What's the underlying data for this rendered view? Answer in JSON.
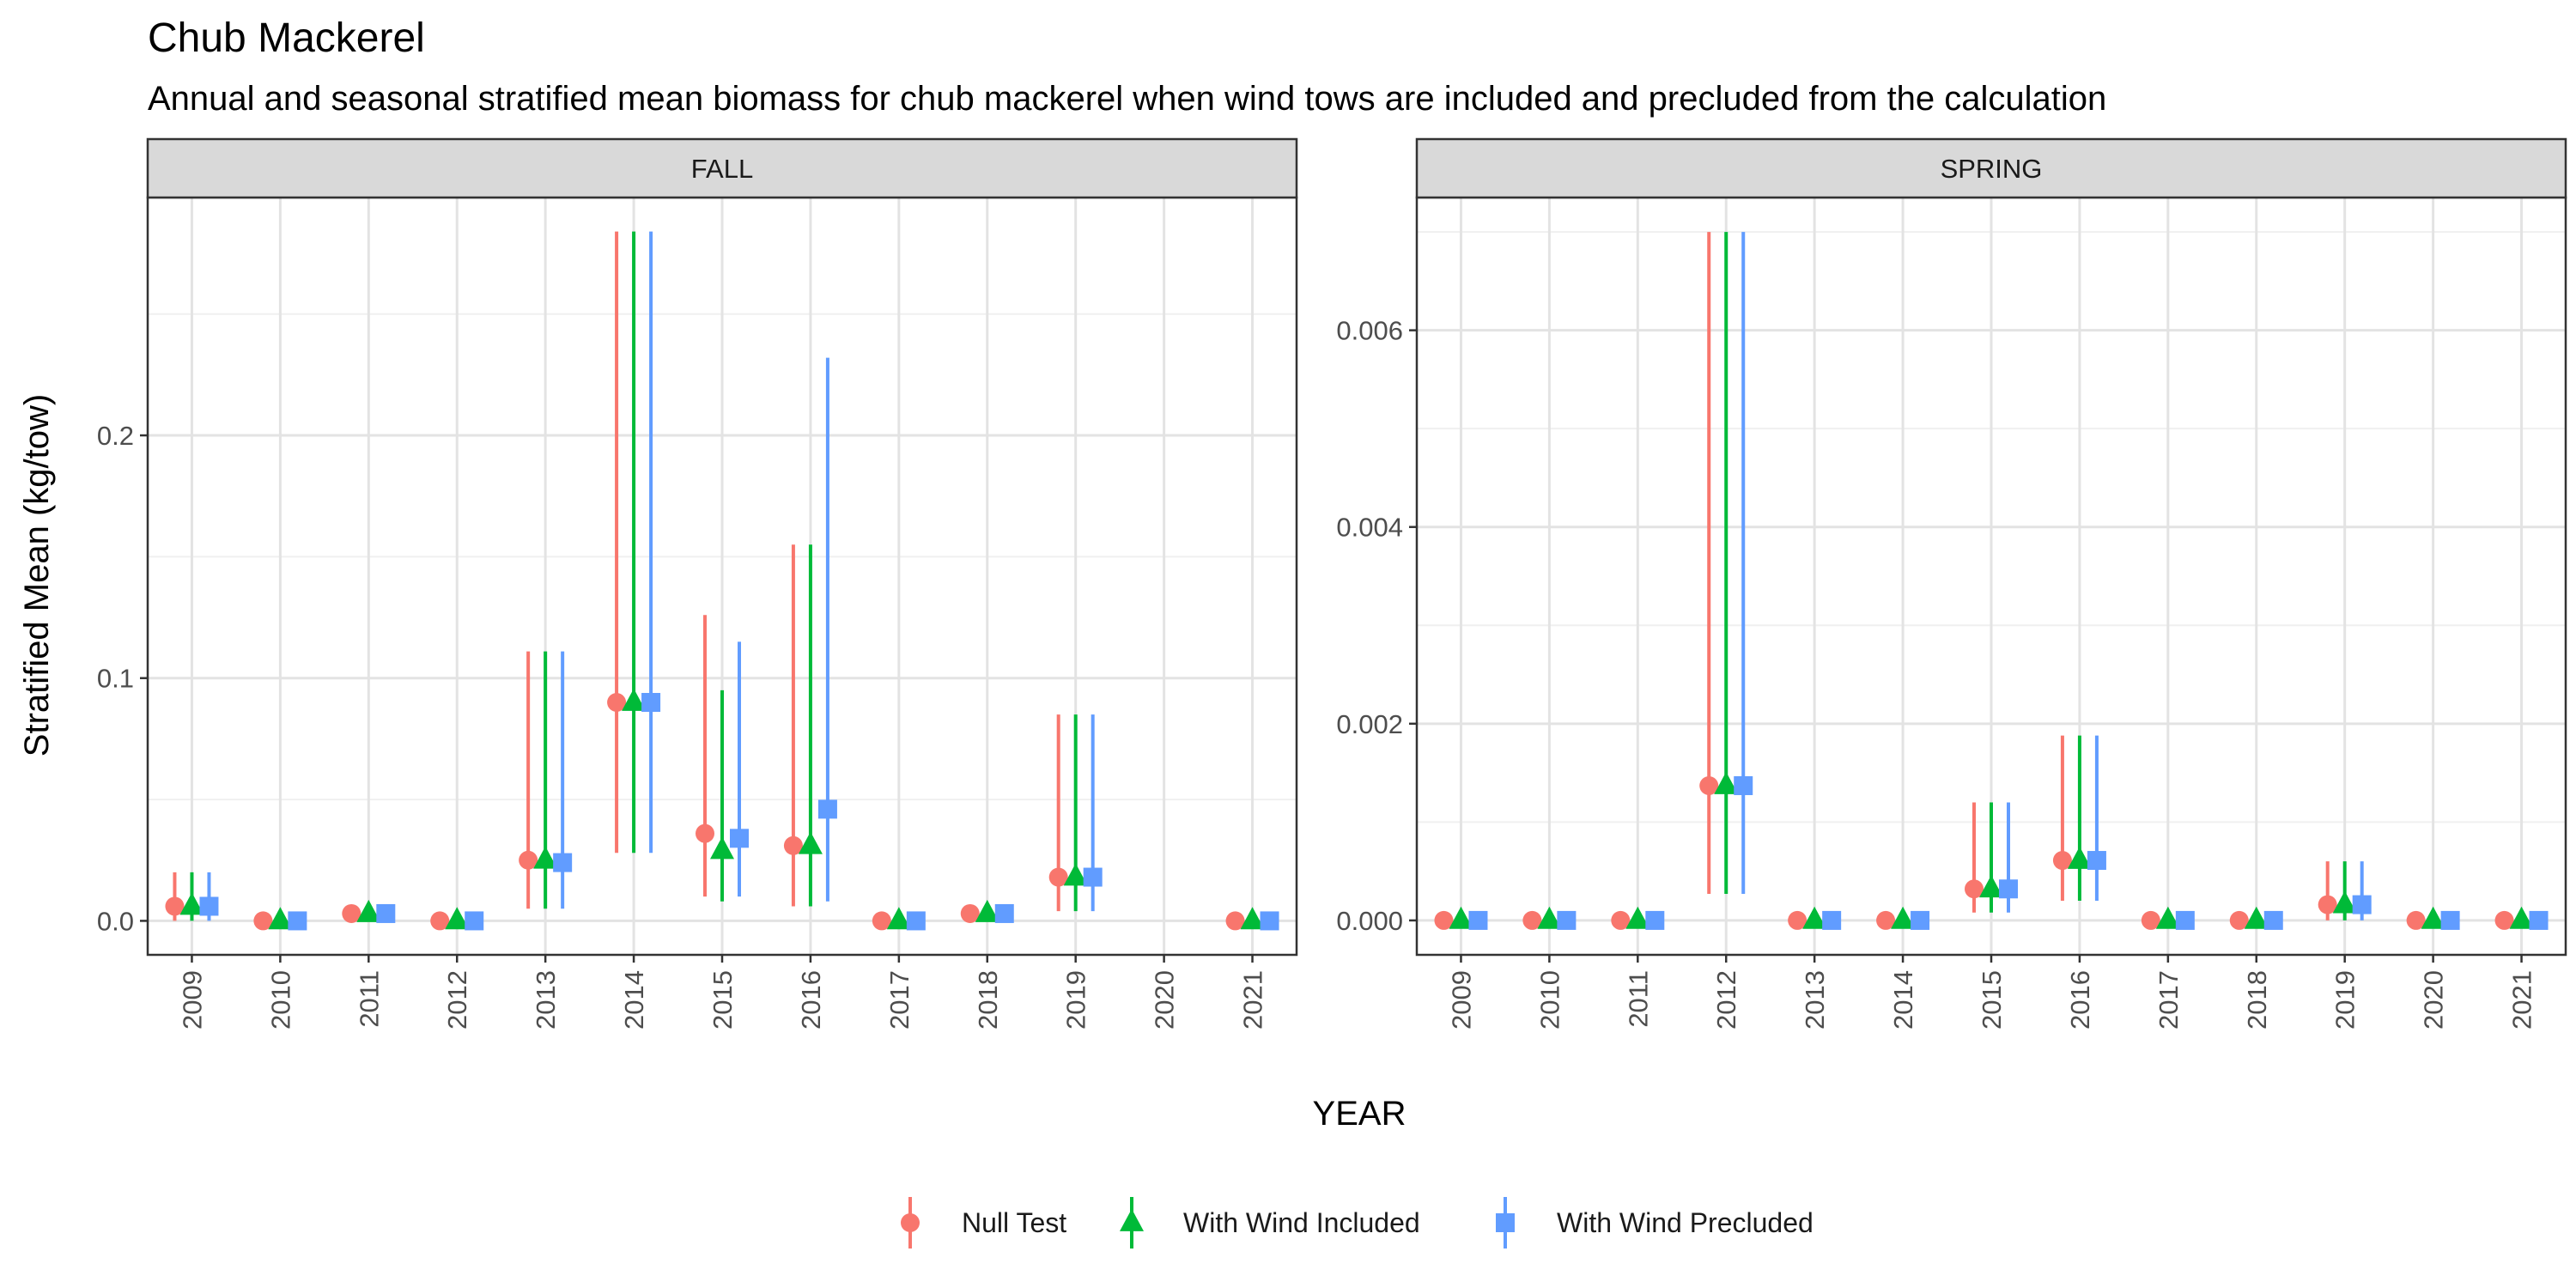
{
  "chart_data": {
    "type": "scatter",
    "title": "Chub Mackerel",
    "subtitle": "Annual and seasonal stratified mean biomass for chub mackerel when wind tows are included and precluded from the calculation",
    "xlabel": "YEAR",
    "ylabel": "Stratified Mean (kg/tow)",
    "grid": true,
    "legend_position": "bottom",
    "categories": [
      "2009",
      "2010",
      "2011",
      "2012",
      "2013",
      "2014",
      "2015",
      "2016",
      "2017",
      "2018",
      "2019",
      "2020",
      "2021"
    ],
    "series_styles": [
      {
        "name": "Null Test",
        "color": "#F8766D",
        "shape": "circle"
      },
      {
        "name": "With Wind Included",
        "color": "#00BA38",
        "shape": "triangle"
      },
      {
        "name": "With Wind Precluded",
        "color": "#619CFF",
        "shape": "square"
      }
    ],
    "panels": [
      {
        "strip": "FALL",
        "ylim": [
          -0.014,
          0.298
        ],
        "yticks": [
          0.0,
          0.1,
          0.2
        ],
        "ytick_labels": [
          "0.0",
          "0.1",
          "0.2"
        ],
        "series": [
          {
            "name": "Null Test",
            "points": [
              {
                "x": "2009",
                "y": 0.006,
                "lo": 0.0,
                "hi": 0.02
              },
              {
                "x": "2010",
                "y": 0.0,
                "lo": 0.0,
                "hi": 0.0
              },
              {
                "x": "2011",
                "y": 0.003,
                "lo": 0.003,
                "hi": 0.003
              },
              {
                "x": "2012",
                "y": 0.0,
                "lo": 0.0,
                "hi": 0.0
              },
              {
                "x": "2013",
                "y": 0.025,
                "lo": 0.005,
                "hi": 0.111
              },
              {
                "x": "2014",
                "y": 0.09,
                "lo": 0.028,
                "hi": 0.284
              },
              {
                "x": "2015",
                "y": 0.036,
                "lo": 0.01,
                "hi": 0.126
              },
              {
                "x": "2016",
                "y": 0.031,
                "lo": 0.006,
                "hi": 0.155
              },
              {
                "x": "2017",
                "y": 0.0,
                "lo": 0.0,
                "hi": 0.0
              },
              {
                "x": "2018",
                "y": 0.003,
                "lo": 0.003,
                "hi": 0.003
              },
              {
                "x": "2019",
                "y": 0.018,
                "lo": 0.004,
                "hi": 0.085
              },
              {
                "x": "2021",
                "y": 0.0,
                "lo": 0.0,
                "hi": 0.0
              }
            ]
          },
          {
            "name": "With Wind Included",
            "points": [
              {
                "x": "2009",
                "y": 0.006,
                "lo": 0.0,
                "hi": 0.02
              },
              {
                "x": "2010",
                "y": 0.0,
                "lo": 0.0,
                "hi": 0.0
              },
              {
                "x": "2011",
                "y": 0.003,
                "lo": 0.003,
                "hi": 0.003
              },
              {
                "x": "2012",
                "y": 0.0,
                "lo": 0.0,
                "hi": 0.0
              },
              {
                "x": "2013",
                "y": 0.025,
                "lo": 0.005,
                "hi": 0.111
              },
              {
                "x": "2014",
                "y": 0.09,
                "lo": 0.028,
                "hi": 0.284
              },
              {
                "x": "2015",
                "y": 0.029,
                "lo": 0.008,
                "hi": 0.095
              },
              {
                "x": "2016",
                "y": 0.031,
                "lo": 0.006,
                "hi": 0.155
              },
              {
                "x": "2017",
                "y": 0.0,
                "lo": 0.0,
                "hi": 0.0
              },
              {
                "x": "2018",
                "y": 0.003,
                "lo": 0.003,
                "hi": 0.003
              },
              {
                "x": "2019",
                "y": 0.018,
                "lo": 0.004,
                "hi": 0.085
              },
              {
                "x": "2021",
                "y": 0.0,
                "lo": 0.0,
                "hi": 0.0
              }
            ]
          },
          {
            "name": "With Wind Precluded",
            "points": [
              {
                "x": "2009",
                "y": 0.006,
                "lo": 0.0,
                "hi": 0.02
              },
              {
                "x": "2010",
                "y": 0.0,
                "lo": 0.0,
                "hi": 0.0
              },
              {
                "x": "2011",
                "y": 0.003,
                "lo": 0.003,
                "hi": 0.003
              },
              {
                "x": "2012",
                "y": 0.0,
                "lo": 0.0,
                "hi": 0.0
              },
              {
                "x": "2013",
                "y": 0.024,
                "lo": 0.005,
                "hi": 0.111
              },
              {
                "x": "2014",
                "y": 0.09,
                "lo": 0.028,
                "hi": 0.284
              },
              {
                "x": "2015",
                "y": 0.034,
                "lo": 0.01,
                "hi": 0.115
              },
              {
                "x": "2016",
                "y": 0.046,
                "lo": 0.008,
                "hi": 0.232
              },
              {
                "x": "2017",
                "y": 0.0,
                "lo": 0.0,
                "hi": 0.0
              },
              {
                "x": "2018",
                "y": 0.003,
                "lo": 0.003,
                "hi": 0.003
              },
              {
                "x": "2019",
                "y": 0.018,
                "lo": 0.004,
                "hi": 0.085
              },
              {
                "x": "2021",
                "y": 0.0,
                "lo": 0.0,
                "hi": 0.0
              }
            ]
          }
        ]
      },
      {
        "strip": "SPRING",
        "ylim": [
          -0.00035,
          0.00735
        ],
        "yticks": [
          0.0,
          0.002,
          0.004,
          0.006
        ],
        "ytick_labels": [
          "0.000",
          "0.002",
          "0.004",
          "0.006"
        ],
        "series": [
          {
            "name": "Null Test",
            "points": [
              {
                "x": "2009",
                "y": 0.0,
                "lo": 0.0,
                "hi": 0.0
              },
              {
                "x": "2010",
                "y": 0.0,
                "lo": 0.0,
                "hi": 0.0
              },
              {
                "x": "2011",
                "y": 0.0,
                "lo": 0.0,
                "hi": 0.0
              },
              {
                "x": "2012",
                "y": 0.00137,
                "lo": 0.00027,
                "hi": 0.007
              },
              {
                "x": "2013",
                "y": 0.0,
                "lo": 0.0,
                "hi": 0.0
              },
              {
                "x": "2014",
                "y": 0.0,
                "lo": 0.0,
                "hi": 0.0
              },
              {
                "x": "2015",
                "y": 0.00032,
                "lo": 8e-05,
                "hi": 0.0012
              },
              {
                "x": "2016",
                "y": 0.00061,
                "lo": 0.0002,
                "hi": 0.00188
              },
              {
                "x": "2017",
                "y": 0.0,
                "lo": 0.0,
                "hi": 0.0
              },
              {
                "x": "2018",
                "y": 0.0,
                "lo": 0.0,
                "hi": 0.0
              },
              {
                "x": "2019",
                "y": 0.00016,
                "lo": 0.0,
                "hi": 0.0006
              },
              {
                "x": "2020",
                "y": 0.0,
                "lo": 0.0,
                "hi": 0.0
              },
              {
                "x": "2021",
                "y": 0.0,
                "lo": 0.0,
                "hi": 0.0
              }
            ]
          },
          {
            "name": "With Wind Included",
            "points": [
              {
                "x": "2009",
                "y": 0.0,
                "lo": 0.0,
                "hi": 0.0
              },
              {
                "x": "2010",
                "y": 0.0,
                "lo": 0.0,
                "hi": 0.0
              },
              {
                "x": "2011",
                "y": 0.0,
                "lo": 0.0,
                "hi": 0.0
              },
              {
                "x": "2012",
                "y": 0.00137,
                "lo": 0.00027,
                "hi": 0.007
              },
              {
                "x": "2013",
                "y": 0.0,
                "lo": 0.0,
                "hi": 0.0
              },
              {
                "x": "2014",
                "y": 0.0,
                "lo": 0.0,
                "hi": 0.0
              },
              {
                "x": "2015",
                "y": 0.00032,
                "lo": 8e-05,
                "hi": 0.0012
              },
              {
                "x": "2016",
                "y": 0.00061,
                "lo": 0.0002,
                "hi": 0.00188
              },
              {
                "x": "2017",
                "y": 0.0,
                "lo": 0.0,
                "hi": 0.0
              },
              {
                "x": "2018",
                "y": 0.0,
                "lo": 0.0,
                "hi": 0.0
              },
              {
                "x": "2019",
                "y": 0.00016,
                "lo": 0.0,
                "hi": 0.0006
              },
              {
                "x": "2020",
                "y": 0.0,
                "lo": 0.0,
                "hi": 0.0
              },
              {
                "x": "2021",
                "y": 0.0,
                "lo": 0.0,
                "hi": 0.0
              }
            ]
          },
          {
            "name": "With Wind Precluded",
            "points": [
              {
                "x": "2009",
                "y": 0.0,
                "lo": 0.0,
                "hi": 0.0
              },
              {
                "x": "2010",
                "y": 0.0,
                "lo": 0.0,
                "hi": 0.0
              },
              {
                "x": "2011",
                "y": 0.0,
                "lo": 0.0,
                "hi": 0.0
              },
              {
                "x": "2012",
                "y": 0.00137,
                "lo": 0.00027,
                "hi": 0.007
              },
              {
                "x": "2013",
                "y": 0.0,
                "lo": 0.0,
                "hi": 0.0
              },
              {
                "x": "2014",
                "y": 0.0,
                "lo": 0.0,
                "hi": 0.0
              },
              {
                "x": "2015",
                "y": 0.00032,
                "lo": 8e-05,
                "hi": 0.0012
              },
              {
                "x": "2016",
                "y": 0.00061,
                "lo": 0.0002,
                "hi": 0.00188
              },
              {
                "x": "2017",
                "y": 0.0,
                "lo": 0.0,
                "hi": 0.0
              },
              {
                "x": "2018",
                "y": 0.0,
                "lo": 0.0,
                "hi": 0.0
              },
              {
                "x": "2019",
                "y": 0.00016,
                "lo": 0.0,
                "hi": 0.0006
              },
              {
                "x": "2020",
                "y": 0.0,
                "lo": 0.0,
                "hi": 0.0
              },
              {
                "x": "2021",
                "y": 0.0,
                "lo": 0.0,
                "hi": 0.0
              }
            ]
          }
        ]
      }
    ]
  }
}
